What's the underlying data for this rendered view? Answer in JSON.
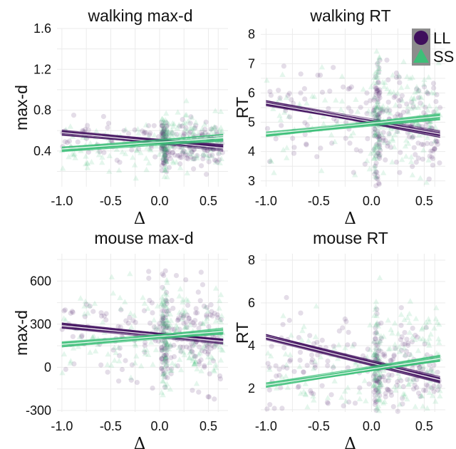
{
  "colors": {
    "LL": "#3f0f5c",
    "SS": "#3dbf78",
    "grid": "#ebebeb",
    "legend_key_bg": "#8c8c8c"
  },
  "legend": {
    "position": "top-right",
    "entries": [
      {
        "label": "LL",
        "shape": "circle",
        "color": "#3f0f5c"
      },
      {
        "label": "SS",
        "shape": "triangle",
        "color": "#3dbf78"
      }
    ]
  },
  "chart_data": [
    {
      "type": "scatter",
      "title": "walking max-d",
      "xlabel": "Δ",
      "ylabel": "max-d",
      "xlim": [
        -1.05,
        0.7
      ],
      "ylim": [
        0.05,
        1.6
      ],
      "xticks": [
        -1.0,
        -0.5,
        0.0,
        0.5
      ],
      "xtick_labels": [
        "-1.0",
        "-0.5",
        "0.0",
        "0.5"
      ],
      "yticks": [
        0.4,
        0.8,
        1.2,
        1.6
      ],
      "ytick_labels": [
        "0.4",
        "0.8",
        "1.2",
        "1.6"
      ],
      "grid": true,
      "series": [
        {
          "name": "LL",
          "marker": "circle",
          "fit": {
            "x": [
              -1.0,
              0.65
            ],
            "y": [
              0.58,
              0.43
            ]
          },
          "dist": {
            "left_center": 0.52,
            "left_spread": 0.1,
            "right_center": 0.46,
            "right_spread": 0.11
          }
        },
        {
          "name": "SS",
          "marker": "triangle",
          "fit": {
            "x": [
              -1.0,
              0.65
            ],
            "y": [
              0.42,
              0.53
            ]
          },
          "dist": {
            "left_center": 0.4,
            "left_spread": 0.11,
            "right_center": 0.5,
            "right_spread": 0.12
          }
        }
      ]
    },
    {
      "type": "scatter",
      "title": "walking RT",
      "xlabel": "Δ",
      "ylabel": "RT",
      "xlim": [
        -1.05,
        0.7
      ],
      "ylim": [
        2.8,
        8.2
      ],
      "xticks": [
        -1.0,
        -0.5,
        0.0,
        0.5
      ],
      "xtick_labels": [
        "-1.0",
        "-0.5",
        "0.0",
        "0.5"
      ],
      "yticks": [
        3,
        4,
        5,
        6,
        7,
        8
      ],
      "ytick_labels": [
        "3",
        "4",
        "5",
        "6",
        "7",
        "8"
      ],
      "grid": true,
      "series": [
        {
          "name": "LL",
          "marker": "circle",
          "fit": {
            "x": [
              -1.0,
              0.65
            ],
            "y": [
              5.65,
              4.6
            ]
          },
          "dist": {
            "left_center": 5.3,
            "left_spread": 0.9,
            "right_center": 4.9,
            "right_spread": 0.95
          }
        },
        {
          "name": "SS",
          "marker": "triangle",
          "fit": {
            "x": [
              -1.0,
              0.65
            ],
            "y": [
              4.6,
              5.2
            ]
          },
          "dist": {
            "left_center": 4.8,
            "left_spread": 1.0,
            "right_center": 5.1,
            "right_spread": 0.9
          }
        }
      ]
    },
    {
      "type": "scatter",
      "title": "mouse max-d",
      "xlabel": "Δ",
      "ylabel": "max-d",
      "xlim": [
        -1.05,
        0.7
      ],
      "ylim": [
        -310,
        790
      ],
      "xticks": [
        -1.0,
        -0.5,
        0.0,
        0.5
      ],
      "xtick_labels": [
        "-1.0",
        "-0.5",
        "0.0",
        "0.5"
      ],
      "yticks": [
        -300,
        0,
        300,
        600
      ],
      "ytick_labels": [
        "-300",
        "0",
        "300",
        "600"
      ],
      "grid": true,
      "series": [
        {
          "name": "LL",
          "marker": "circle",
          "fit": {
            "x": [
              -1.0,
              0.65
            ],
            "y": [
              290,
              180
            ]
          },
          "dist": {
            "left_center": 230,
            "left_spread": 150,
            "right_center": 200,
            "right_spread": 170
          }
        },
        {
          "name": "SS",
          "marker": "triangle",
          "fit": {
            "x": [
              -1.0,
              0.65
            ],
            "y": [
              160,
              250
            ]
          },
          "dist": {
            "left_center": 180,
            "left_spread": 180,
            "right_center": 220,
            "right_spread": 160
          }
        }
      ]
    },
    {
      "type": "scatter",
      "title": "mouse RT",
      "xlabel": "Δ",
      "ylabel": "RT",
      "xlim": [
        -1.05,
        0.7
      ],
      "ylim": [
        0.9,
        8.3
      ],
      "xticks": [
        -1.0,
        -0.5,
        0.0,
        0.5
      ],
      "xtick_labels": [
        "-1.0",
        "-0.5",
        "0.0",
        "0.5"
      ],
      "yticks": [
        2,
        4,
        6,
        8
      ],
      "ytick_labels": [
        "2",
        "4",
        "6",
        "8"
      ],
      "grid": true,
      "series": [
        {
          "name": "LL",
          "marker": "circle",
          "fit": {
            "x": [
              -1.0,
              0.65
            ],
            "y": [
              4.4,
              2.4
            ]
          },
          "dist": {
            "left_center": 3.5,
            "left_spread": 1.3,
            "right_center": 2.8,
            "right_spread": 1.2
          }
        },
        {
          "name": "SS",
          "marker": "triangle",
          "fit": {
            "x": [
              -1.0,
              0.65
            ],
            "y": [
              2.15,
              3.4
            ]
          },
          "dist": {
            "left_center": 2.8,
            "left_spread": 1.4,
            "right_center": 3.1,
            "right_spread": 1.3
          }
        }
      ]
    }
  ]
}
